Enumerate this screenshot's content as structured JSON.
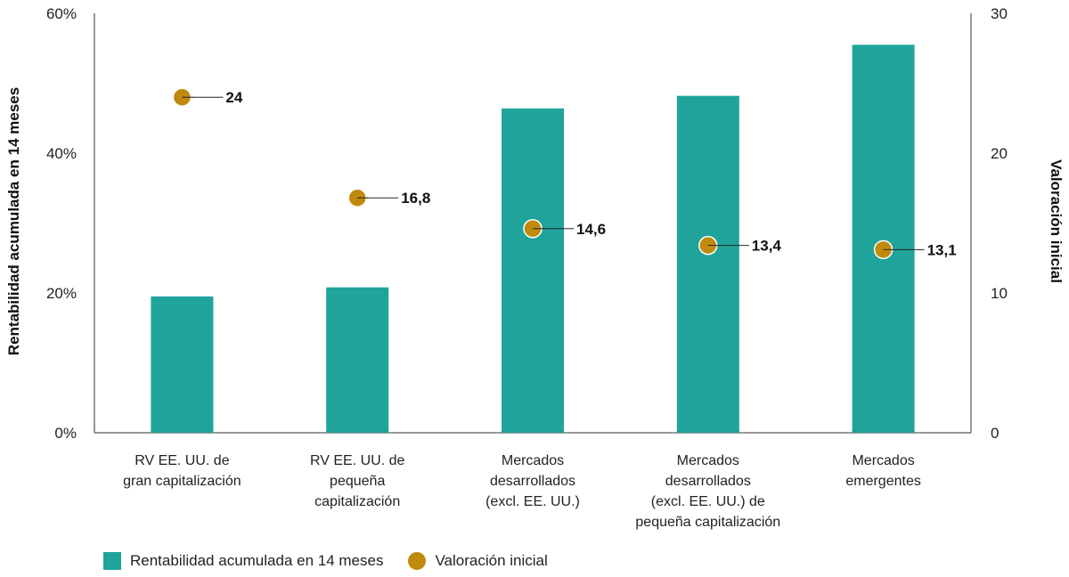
{
  "chart_data": {
    "type": "bar",
    "categories": [
      [
        "RV EE. UU. de",
        "gran capitalización"
      ],
      [
        "RV EE. UU. de",
        "pequeña",
        "capitalización"
      ],
      [
        "Mercados",
        "desarrollados",
        "(excl. EE. UU.)"
      ],
      [
        "Mercados",
        "desarrollados",
        "(excl. EE. UU.) de",
        "pequeña capitalización"
      ],
      [
        "Mercados",
        "emergentes"
      ]
    ],
    "series": [
      {
        "name": "Rentabilidad acumulada en 14 meses",
        "type": "bar",
        "axis": "left",
        "unit": "%",
        "values": [
          19.5,
          20.8,
          46.4,
          48.2,
          55.5
        ],
        "color": "#1fa39b"
      },
      {
        "name": "Valoración inicial",
        "type": "scatter",
        "axis": "right",
        "values": [
          24,
          16.8,
          14.6,
          13.4,
          13.1
        ],
        "labels": [
          "24",
          "16,8",
          "14,6",
          "13,4",
          "13,1"
        ],
        "color": "#c08a0d"
      }
    ],
    "ylabel": "Rentabilidad acumulada en 14 meses",
    "y2label": "Valoración inicial",
    "ylim": [
      0,
      60
    ],
    "y2lim": [
      0,
      30
    ],
    "yticks": [
      "0%",
      "20%",
      "40%",
      "60%"
    ],
    "y2ticks": [
      "0",
      "10",
      "20",
      "30"
    ],
    "grid": false,
    "legend_position": "bottom-left"
  },
  "legend": {
    "bar_label": "Rentabilidad acumulada en 14 meses",
    "dot_label": "Valoración inicial"
  }
}
